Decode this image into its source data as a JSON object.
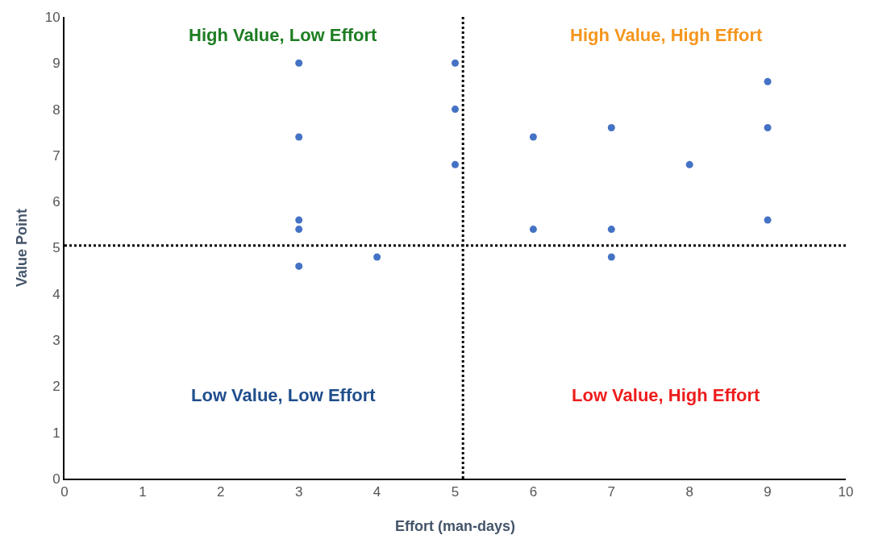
{
  "chart_data": {
    "type": "scatter",
    "xlabel": "Effort (man-days)",
    "ylabel": "Value Point",
    "x": [
      3,
      3,
      3,
      3,
      3,
      4,
      5,
      5,
      5,
      6,
      6,
      7,
      7,
      7,
      8,
      9,
      9,
      9
    ],
    "series": [
      {
        "color": "#4472c4",
        "values": [
          9.0,
          7.4,
          5.6,
          5.4,
          4.6,
          4.8,
          9.0,
          8.0,
          6.8,
          7.4,
          5.4,
          7.6,
          5.4,
          4.8,
          6.8,
          8.6,
          7.6,
          5.6
        ]
      }
    ],
    "xlim": [
      0,
      10
    ],
    "ylim": [
      0,
      10
    ],
    "xticks": [
      0,
      1,
      2,
      3,
      4,
      5,
      6,
      7,
      8,
      9,
      10
    ],
    "yticks": [
      0,
      1,
      2,
      3,
      4,
      5,
      6,
      7,
      8,
      9,
      10
    ],
    "grid": false,
    "legend": false,
    "marker": "circle",
    "ref_lines": [
      {
        "axis": "x",
        "value": 5.1,
        "color": "#000000",
        "line_style": "dotted"
      },
      {
        "axis": "y",
        "value": 5.05,
        "color": "#000000",
        "line_style": "dotted"
      }
    ],
    "annotations": [
      "High Value, Low Effort",
      "High Value, High Effort",
      "Low Value, Low Effort",
      "Low Value, High Effort"
    ]
  }
}
